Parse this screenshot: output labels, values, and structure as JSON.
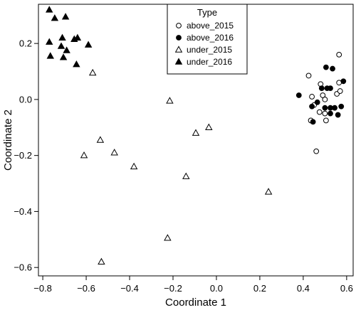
{
  "chart_data": {
    "type": "scatter",
    "xlabel": "Coordinate 1",
    "ylabel": "Coordinate 2",
    "xlim": [
      -0.82,
      0.63
    ],
    "ylim": [
      -0.63,
      0.34
    ],
    "xticks": [
      -0.8,
      -0.6,
      -0.4,
      -0.2,
      0.0,
      0.2,
      0.4,
      0.6
    ],
    "xtick_labels": [
      "−0.8",
      "−0.6",
      "−0.4",
      "−0.2",
      "0.0",
      "0.2",
      "0.4",
      "0.6"
    ],
    "yticks": [
      -0.6,
      -0.4,
      -0.2,
      0.0,
      0.2
    ],
    "ytick_labels": [
      "−0.6",
      "−0.4",
      "−0.2",
      "0.0",
      "0.2"
    ],
    "grid": false,
    "legend": {
      "title": "Type",
      "position": "top-center"
    },
    "series": [
      {
        "name": "above_2015",
        "marker": "circle-open",
        "points": [
          [
            0.565,
            0.16
          ],
          [
            0.425,
            0.085
          ],
          [
            0.48,
            0.055
          ],
          [
            0.565,
            0.06
          ],
          [
            0.44,
            0.01
          ],
          [
            0.49,
            0.015
          ],
          [
            0.555,
            0.02
          ],
          [
            0.57,
            0.03
          ],
          [
            0.5,
            0.0
          ],
          [
            0.45,
            -0.02
          ],
          [
            0.475,
            -0.045
          ],
          [
            0.5,
            -0.05
          ],
          [
            0.435,
            -0.075
          ],
          [
            0.505,
            -0.075
          ],
          [
            0.46,
            -0.185
          ]
        ]
      },
      {
        "name": "above_2016",
        "marker": "circle-filled",
        "points": [
          [
            0.505,
            0.115
          ],
          [
            0.535,
            0.11
          ],
          [
            0.485,
            0.04
          ],
          [
            0.51,
            0.04
          ],
          [
            0.525,
            0.04
          ],
          [
            0.585,
            0.065
          ],
          [
            0.38,
            0.015
          ],
          [
            0.465,
            -0.01
          ],
          [
            0.44,
            -0.025
          ],
          [
            0.5,
            -0.03
          ],
          [
            0.525,
            -0.03
          ],
          [
            0.575,
            -0.025
          ],
          [
            0.545,
            -0.03
          ],
          [
            0.525,
            -0.05
          ],
          [
            0.56,
            -0.055
          ],
          [
            0.445,
            -0.08
          ]
        ]
      },
      {
        "name": "under_2015",
        "marker": "triangle-open",
        "points": [
          [
            -0.57,
            0.095
          ],
          [
            -0.215,
            -0.005
          ],
          [
            -0.095,
            -0.12
          ],
          [
            -0.035,
            -0.1
          ],
          [
            -0.535,
            -0.145
          ],
          [
            -0.47,
            -0.19
          ],
          [
            -0.61,
            -0.2
          ],
          [
            -0.38,
            -0.24
          ],
          [
            -0.14,
            -0.275
          ],
          [
            0.24,
            -0.33
          ],
          [
            -0.225,
            -0.495
          ],
          [
            -0.53,
            -0.58
          ]
        ]
      },
      {
        "name": "under_2016",
        "marker": "triangle-filled",
        "points": [
          [
            -0.77,
            0.32
          ],
          [
            -0.745,
            0.29
          ],
          [
            -0.695,
            0.295
          ],
          [
            -0.71,
            0.22
          ],
          [
            -0.655,
            0.215
          ],
          [
            -0.64,
            0.22
          ],
          [
            -0.77,
            0.205
          ],
          [
            -0.715,
            0.19
          ],
          [
            -0.69,
            0.175
          ],
          [
            -0.59,
            0.195
          ],
          [
            -0.765,
            0.155
          ],
          [
            -0.705,
            0.15
          ],
          [
            -0.645,
            0.125
          ]
        ]
      }
    ]
  }
}
